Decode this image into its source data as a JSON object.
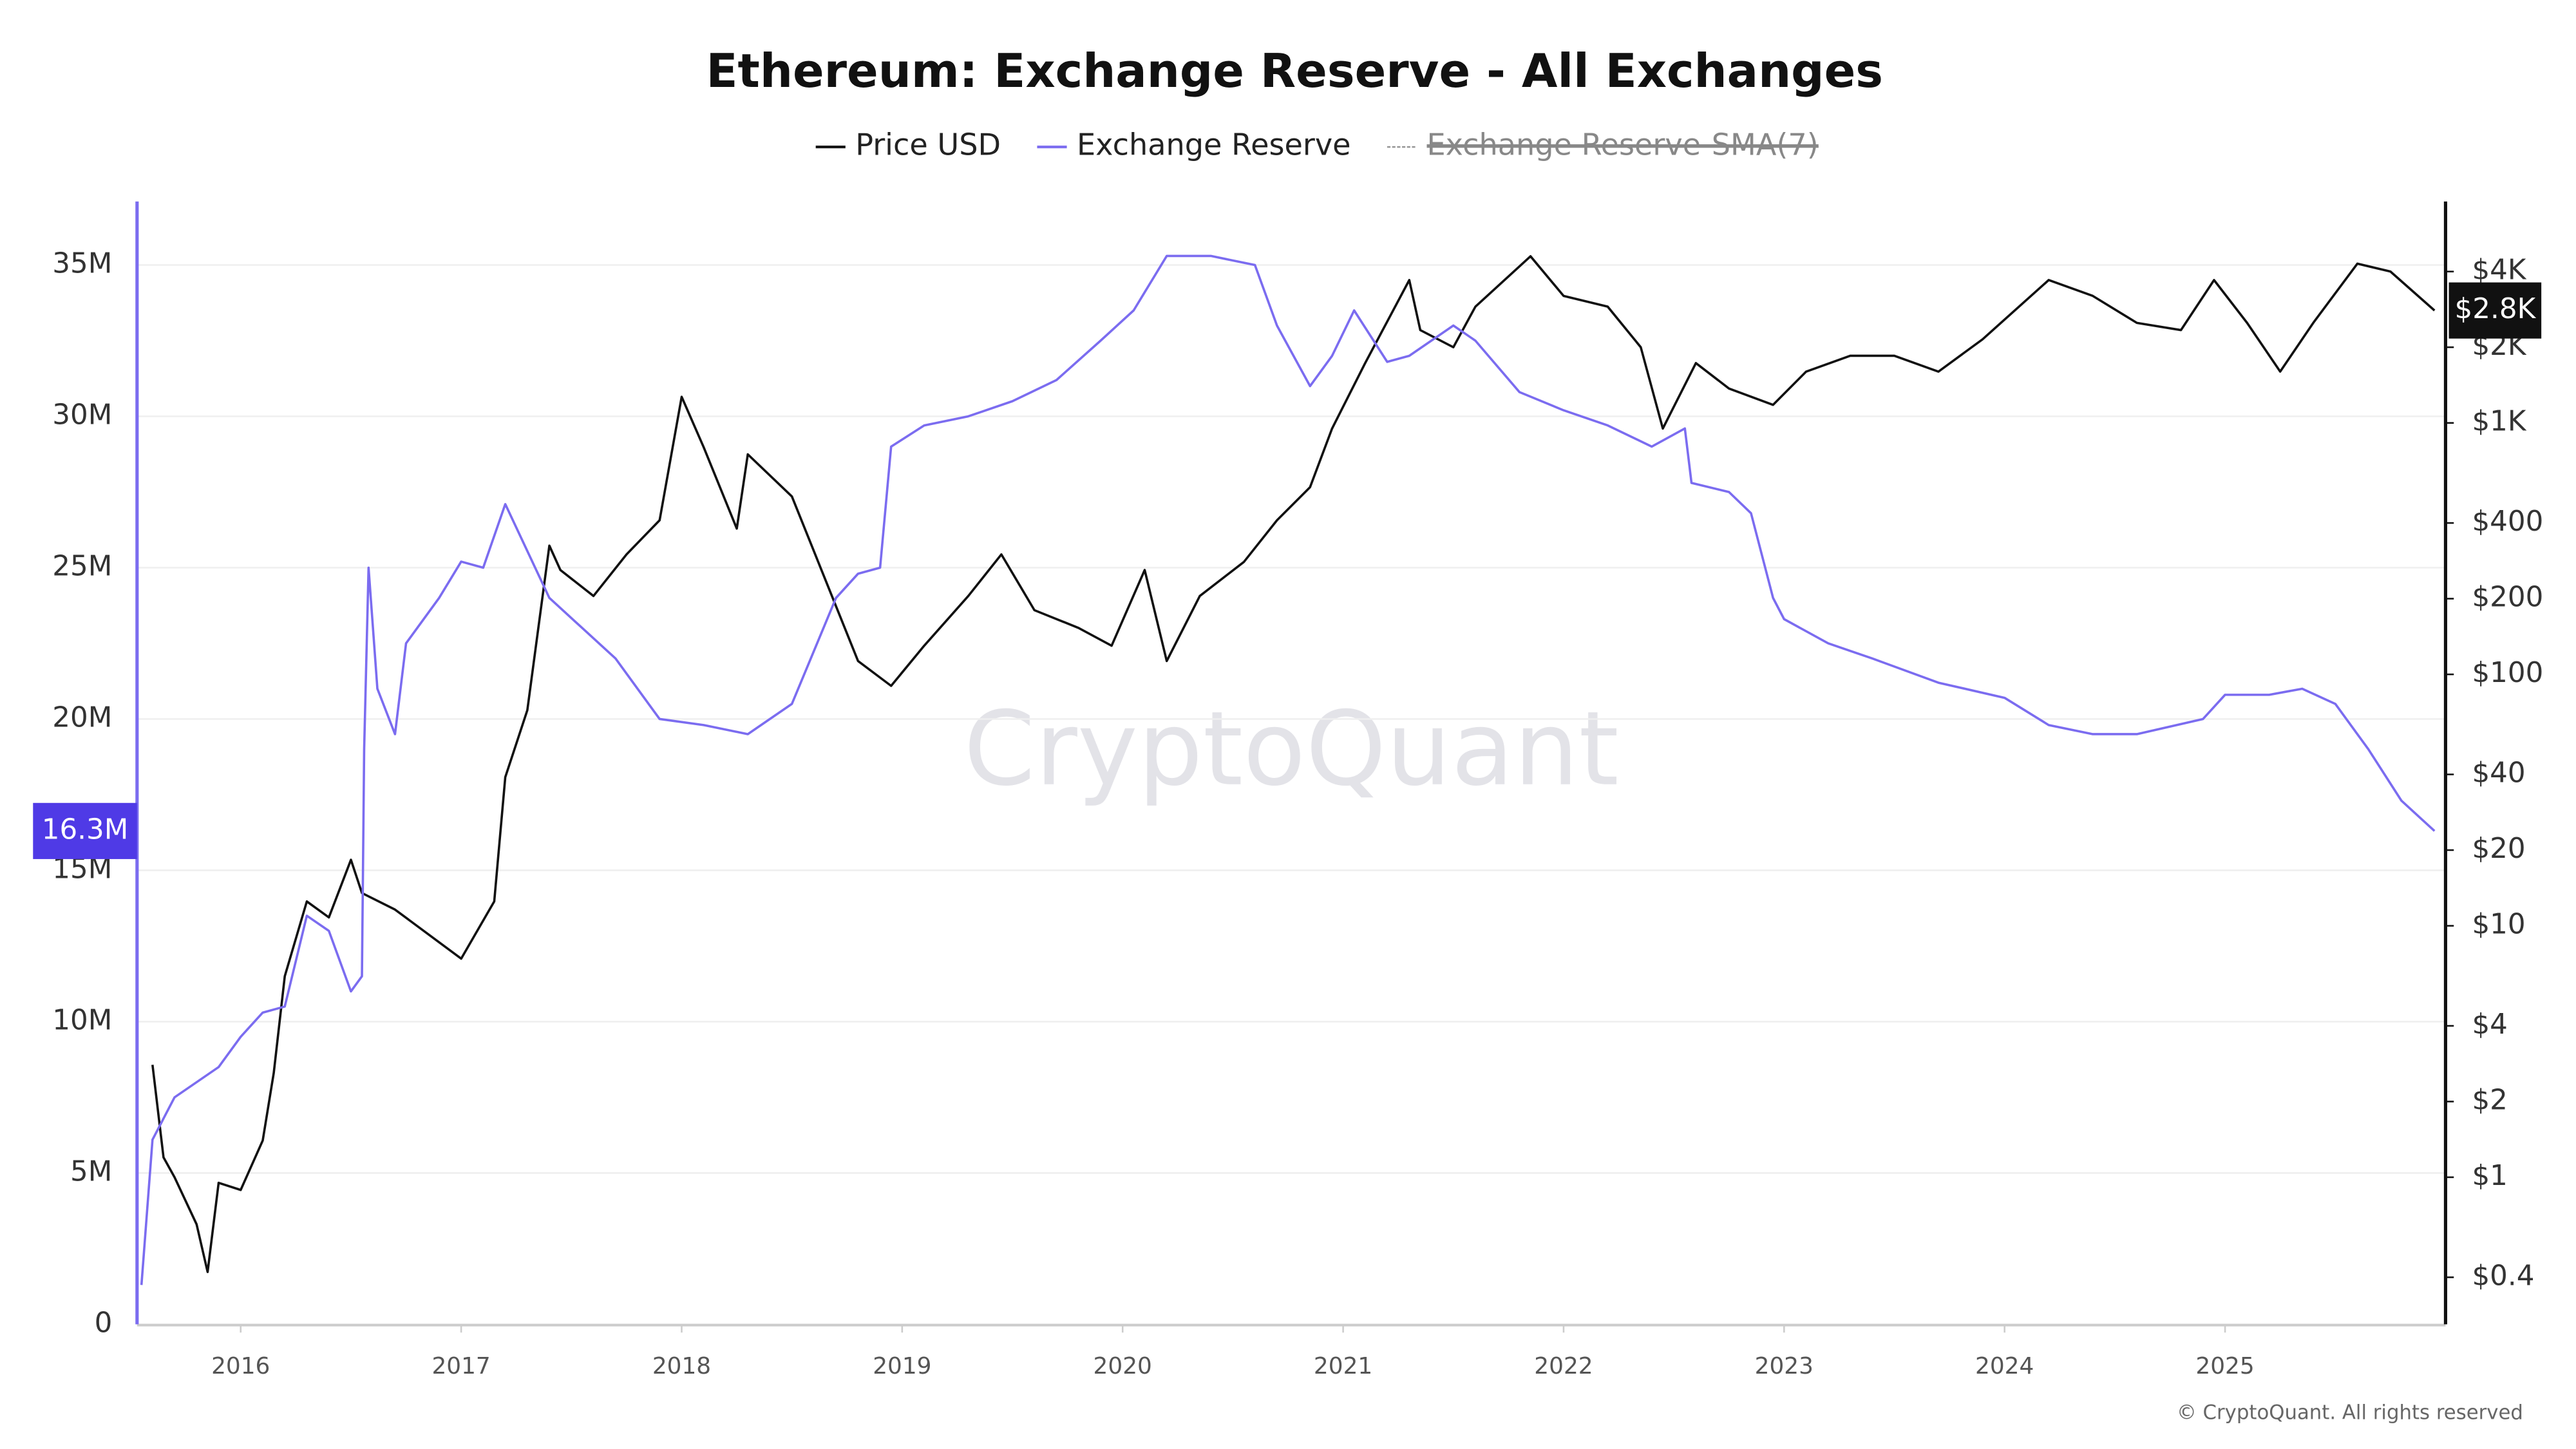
{
  "chart_data": {
    "type": "line",
    "title": "Ethereum: Exchange Reserve - All Exchanges",
    "watermark": "CryptoQuant",
    "footer": "© CryptoQuant. All rights reserved",
    "legend_hidden": [
      "Exchange Reserve-SMA(7)"
    ],
    "xlim": [
      2015.53,
      2026.0
    ],
    "xticks": [
      2016,
      2017,
      2018,
      2019,
      2020,
      2021,
      2022,
      2023,
      2024,
      2025
    ],
    "ylim": [
      0,
      37100000
    ],
    "yticks": [
      {
        "value": 0,
        "label": "0"
      },
      {
        "value": 5000000,
        "label": "5M"
      },
      {
        "value": 10000000,
        "label": "10M"
      },
      {
        "value": 15000000,
        "label": "15M"
      },
      {
        "value": 20000000,
        "label": "20M"
      },
      {
        "value": 25000000,
        "label": "25M"
      },
      {
        "value": 30000000,
        "label": "30M"
      },
      {
        "value": 35000000,
        "label": "35M"
      }
    ],
    "y2_log": true,
    "y2lim": [
      0.26,
      7600
    ],
    "y2ticks": [
      {
        "value": 0.4,
        "label": "$0.4"
      },
      {
        "value": 1,
        "label": "$1"
      },
      {
        "value": 2,
        "label": "$2"
      },
      {
        "value": 4,
        "label": "$4"
      },
      {
        "value": 10,
        "label": "$10"
      },
      {
        "value": 20,
        "label": "$20"
      },
      {
        "value": 40,
        "label": "$40"
      },
      {
        "value": 100,
        "label": "$100"
      },
      {
        "value": 200,
        "label": "$200"
      },
      {
        "value": 400,
        "label": "$400"
      },
      {
        "value": 1000,
        "label": "$1K"
      },
      {
        "value": 2000,
        "label": "$2K"
      },
      {
        "value": 4000,
        "label": "$4K"
      }
    ],
    "grid": true,
    "series": [
      {
        "name": "Price USD",
        "color": "#111111",
        "axis": "y2",
        "last_label": "$2.8K",
        "x": [
          2015.6,
          2015.65,
          2015.7,
          2015.8,
          2015.85,
          2015.9,
          2016.0,
          2016.1,
          2016.15,
          2016.2,
          2016.3,
          2016.4,
          2016.5,
          2016.55,
          2016.7,
          2016.9,
          2017.0,
          2017.15,
          2017.2,
          2017.3,
          2017.4,
          2017.45,
          2017.6,
          2017.75,
          2017.9,
          2018.0,
          2018.1,
          2018.25,
          2018.3,
          2018.5,
          2018.65,
          2018.8,
          2018.95,
          2019.1,
          2019.3,
          2019.45,
          2019.6,
          2019.8,
          2019.95,
          2020.1,
          2020.2,
          2020.35,
          2020.55,
          2020.7,
          2020.85,
          2020.95,
          2021.1,
          2021.3,
          2021.35,
          2021.5,
          2021.6,
          2021.85,
          2022.0,
          2022.2,
          2022.35,
          2022.45,
          2022.6,
          2022.75,
          2022.95,
          2023.1,
          2023.3,
          2023.5,
          2023.7,
          2023.9,
          2024.2,
          2024.4,
          2024.6,
          2024.8,
          2024.95,
          2025.1,
          2025.25,
          2025.4,
          2025.6,
          2025.75,
          2025.95
        ],
        "values": [
          2.8,
          1.2,
          1.0,
          0.65,
          0.42,
          0.95,
          0.89,
          1.4,
          2.6,
          6.3,
          12.5,
          10.8,
          18.3,
          13.5,
          11.6,
          8.6,
          7.4,
          12.5,
          39,
          72,
          325,
          260,
          205,
          300,
          410,
          1270,
          800,
          380,
          750,
          510,
          240,
          113,
          90,
          130,
          205,
          300,
          180,
          153,
          130,
          260,
          113,
          205,
          280,
          410,
          555,
          950,
          1730,
          3700,
          2340,
          2000,
          2900,
          4600,
          3200,
          2900,
          2000,
          950,
          1730,
          1370,
          1180,
          1600,
          1850,
          1850,
          1600,
          2150,
          3700,
          3200,
          2500,
          2340,
          3700,
          2500,
          1600,
          2500,
          4300,
          4000,
          2800
        ]
      },
      {
        "name": "Exchange Reserve",
        "color": "#7b6cf0",
        "last_label": "16.3M",
        "x": [
          2015.55,
          2015.6,
          2015.7,
          2015.9,
          2016.0,
          2016.1,
          2016.2,
          2016.3,
          2016.4,
          2016.5,
          2016.55,
          2016.56,
          2016.58,
          2016.62,
          2016.7,
          2016.75,
          2016.9,
          2017.0,
          2017.1,
          2017.2,
          2017.4,
          2017.55,
          2017.7,
          2017.9,
          2018.1,
          2018.3,
          2018.5,
          2018.7,
          2018.8,
          2018.9,
          2018.95,
          2019.1,
          2019.3,
          2019.5,
          2019.7,
          2019.9,
          2020.05,
          2020.2,
          2020.4,
          2020.6,
          2020.7,
          2020.85,
          2020.95,
          2021.05,
          2021.2,
          2021.3,
          2021.5,
          2021.6,
          2021.8,
          2022.0,
          2022.2,
          2022.4,
          2022.55,
          2022.58,
          2022.75,
          2022.85,
          2022.95,
          2023.0,
          2023.2,
          2023.4,
          2023.7,
          2024.0,
          2024.2,
          2024.4,
          2024.6,
          2024.9,
          2025.0,
          2025.2,
          2025.35,
          2025.5,
          2025.65,
          2025.8,
          2025.95
        ],
        "values": [
          1300000,
          6100000,
          7500000,
          8500000,
          9500000,
          10300000,
          10500000,
          13500000,
          13000000,
          11000000,
          11500000,
          19000000,
          25000000,
          21000000,
          19500000,
          22500000,
          24000000,
          25200000,
          25000000,
          27100000,
          24000000,
          23000000,
          22000000,
          20000000,
          19800000,
          19500000,
          20500000,
          24000000,
          24800000,
          25000000,
          29000000,
          29700000,
          30000000,
          30500000,
          31200000,
          32500000,
          33500000,
          35300000,
          35300000,
          35000000,
          33000000,
          31000000,
          32000000,
          33500000,
          31800000,
          32000000,
          33000000,
          32500000,
          30800000,
          30200000,
          29700000,
          29000000,
          29600000,
          27800000,
          27500000,
          26800000,
          24000000,
          23300000,
          22500000,
          22000000,
          21200000,
          20700000,
          19800000,
          19500000,
          19500000,
          20000000,
          20800000,
          20800000,
          21000000,
          20500000,
          19000000,
          17300000,
          16300000
        ]
      }
    ]
  }
}
